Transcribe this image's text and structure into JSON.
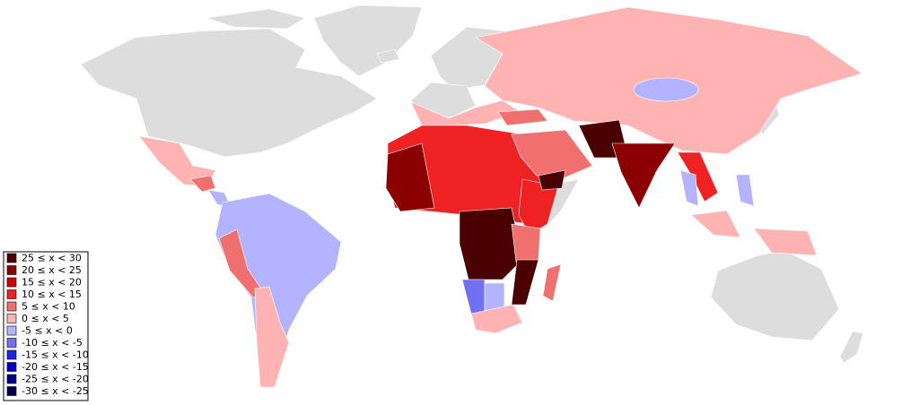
{
  "legend": {
    "items": [
      {
        "label": "25 ≤ x < 30",
        "color": "#4a0000"
      },
      {
        "label": "20 ≤ x < 25",
        "color": "#8b0000"
      },
      {
        "label": "15 ≤ x < 20",
        "color": "#cc0000"
      },
      {
        "label": "10 ≤ x < 15",
        "color": "#ee2222"
      },
      {
        "label": "5 ≤ x < 10",
        "color": "#f07070"
      },
      {
        "label": "0 ≤ x < 5",
        "color": "#ffb3b3"
      },
      {
        "label": "-5 ≤ x < 0",
        "color": "#b3b3ff"
      },
      {
        "label": "-10 ≤ x < -5",
        "color": "#7070f0"
      },
      {
        "label": "-15 ≤ x < -10",
        "color": "#2222ee"
      },
      {
        "label": "-20 ≤ x < -15",
        "color": "#0000cc"
      },
      {
        "label": "-25 ≤ x < -20",
        "color": "#00008b"
      },
      {
        "label": "-30 ≤ x < -25",
        "color": "#00004a"
      }
    ]
  }
}
